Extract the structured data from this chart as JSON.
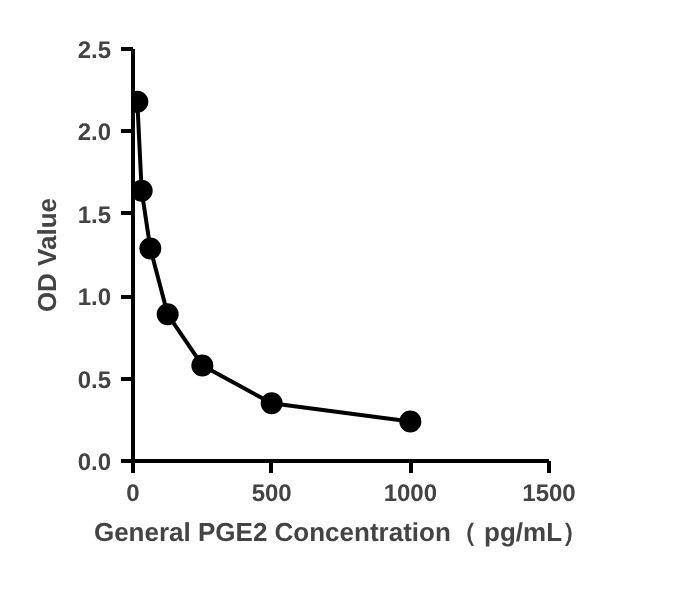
{
  "chart_data": {
    "type": "line",
    "xlabel": "General PGE2 Concentration（ pg/mL）",
    "ylabel": "OD Value",
    "x": [
      15.6,
      31.25,
      62.5,
      125,
      250,
      500,
      1000
    ],
    "series": [
      {
        "color": "#000000",
        "values": [
          2.18,
          1.64,
          1.29,
          0.89,
          0.58,
          0.35,
          0.24
        ]
      }
    ],
    "xlim": [
      0,
      1500
    ],
    "xticks": [
      0,
      500,
      1000,
      1500
    ],
    "ylim": [
      0,
      2.5
    ],
    "yticks": [
      {
        "value": 0,
        "label": "0.0"
      },
      0.5,
      {
        "value": 1,
        "label": "1.0"
      },
      1.5,
      {
        "value": 2,
        "label": "2.0"
      },
      2.5
    ],
    "grid": false,
    "marker": "circle",
    "line_style": "solid"
  }
}
